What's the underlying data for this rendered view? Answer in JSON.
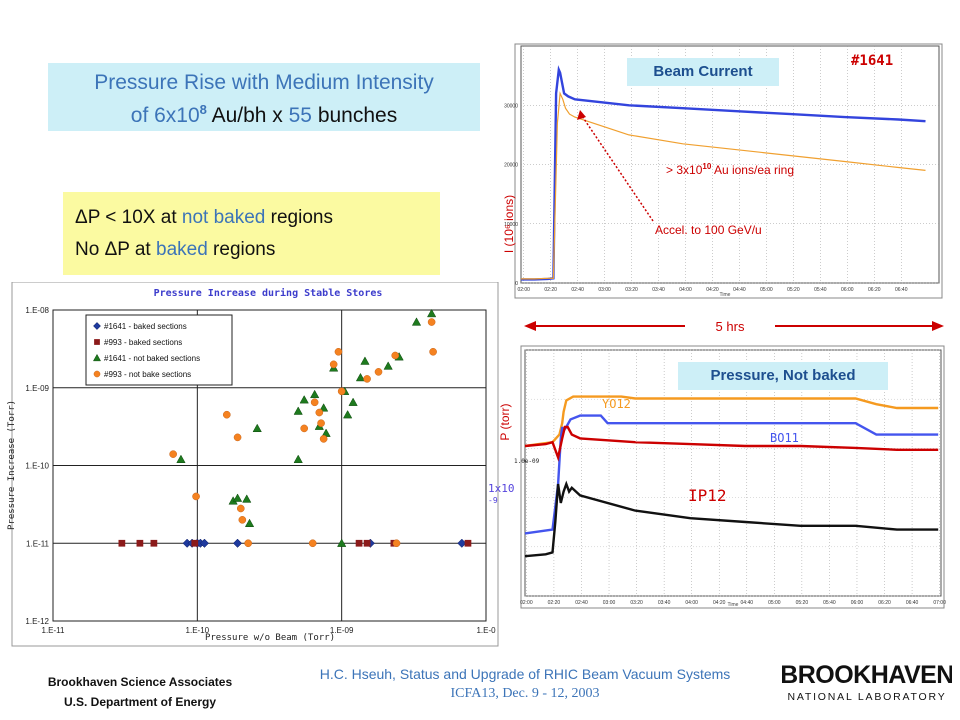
{
  "slide": {
    "title_line1": "Pressure Rise with Medium Intensity",
    "title_line2_pre": "of 6x10",
    "title_line2_sup": "8",
    "title_line2_mid": " Au/bh x ",
    "title_line2_num": "55",
    "title_line2_post": " bunches",
    "note1_pre": "ΔP < 10X at ",
    "note1_hl": "not baked",
    "note1_post": " regions",
    "note2_pre": "No ΔP at ",
    "note2_hl": "baked",
    "note2_post": " regions",
    "footer_org1": "Brookhaven Science Associates",
    "footer_org2": "U.S. Department of Energy",
    "footer_author": "H.C. Hseuh, Status and Upgrade of RHIC Beam Vacuum Systems",
    "footer_event": "ICFA13, Dec. 9 - 12, 2003",
    "logo_line1": "BROOKHAVEN",
    "logo_line2": "NATIONAL LABORATORY",
    "colors": {
      "accent": "#3c74b8",
      "title_bg": "#cdeff7",
      "note_bg": "#fbfaa1",
      "red": "#cc0000"
    }
  },
  "chart_data": [
    {
      "type": "scatter",
      "title": "Pressure Increase during Stable Stores",
      "xlabel": "Pressure w/o Beam (Torr)",
      "ylabel": "Pressure Increase (Torr)",
      "x_scale": "log",
      "y_scale": "log",
      "xlim": [
        1e-11,
        1e-08
      ],
      "ylim": [
        1e-12,
        1e-08
      ],
      "x_ticks": [
        "1.E-11",
        "1.E-10",
        "1.E-09",
        "1.E-0"
      ],
      "y_ticks": [
        "1.E-08",
        "1.E-09",
        "1.E-10",
        "1.E-11",
        "1.E-12"
      ],
      "legend_position": "top-left",
      "series": [
        {
          "name": "#1641 - baked sections",
          "marker": "diamond",
          "color": "#1f3a9e",
          "points": [
            [
              8.5e-11,
              1e-11
            ],
            [
              9.2e-11,
              1e-11
            ],
            [
              1e-10,
              1e-11
            ],
            [
              1.05e-10,
              1e-11
            ],
            [
              1.12e-10,
              1e-11
            ],
            [
              1.9e-10,
              1e-11
            ],
            [
              1.58e-09,
              1e-11
            ],
            [
              6.8e-09,
              1e-11
            ]
          ]
        },
        {
          "name": "#993 - baked sections",
          "marker": "square",
          "color": "#8b1a1a",
          "points": [
            [
              3e-11,
              1e-11
            ],
            [
              4e-11,
              1e-11
            ],
            [
              5e-11,
              1e-11
            ],
            [
              9.6e-11,
              1e-11
            ],
            [
              1.32e-09,
              1e-11
            ],
            [
              1.5e-09,
              1e-11
            ],
            [
              2.3e-09,
              1e-11
            ],
            [
              7.5e-09,
              1e-11
            ]
          ]
        },
        {
          "name": "#1641 - not baked sections",
          "marker": "triangle",
          "color": "#1e7a1e",
          "points": [
            [
              7.7e-11,
              1.2e-10
            ],
            [
              1.77e-10,
              3.5e-11
            ],
            [
              1.9e-10,
              3.8e-11
            ],
            [
              2.2e-10,
              3.7e-11
            ],
            [
              2.3e-10,
              1.8e-11
            ],
            [
              2.6e-10,
              3e-10
            ],
            [
              5e-10,
              1.2e-10
            ],
            [
              5e-10,
              5e-10
            ],
            [
              5.5e-10,
              7e-10
            ],
            [
              6.5e-10,
              8.2e-10
            ],
            [
              7e-10,
              3.2e-10
            ],
            [
              7.5e-10,
              5.5e-10
            ],
            [
              7.8e-10,
              2.6e-10
            ],
            [
              8.8e-10,
              1.8e-09
            ],
            [
              1e-09,
              1e-11
            ],
            [
              1.05e-09,
              9e-10
            ],
            [
              1.1e-09,
              4.5e-10
            ],
            [
              1.2e-09,
              6.5e-10
            ],
            [
              1.35e-09,
              1.35e-09
            ],
            [
              1.45e-09,
              2.2e-09
            ],
            [
              2.1e-09,
              1.9e-09
            ],
            [
              2.5e-09,
              2.5e-09
            ],
            [
              3.3e-09,
              7e-09
            ],
            [
              4.2e-09,
              9e-09
            ]
          ]
        },
        {
          "name": "#993 - not bake sections",
          "marker": "circle",
          "color": "#f58220",
          "points": [
            [
              6.8e-11,
              1.4e-10
            ],
            [
              9.8e-11,
              4e-11
            ],
            [
              1.6e-10,
              4.5e-10
            ],
            [
              1.9e-10,
              2.3e-10
            ],
            [
              2e-10,
              2.8e-11
            ],
            [
              2.05e-10,
              2e-11
            ],
            [
              2.25e-10,
              1e-11
            ],
            [
              5.5e-10,
              3e-10
            ],
            [
              6.3e-10,
              1e-11
            ],
            [
              6.5e-10,
              6.5e-10
            ],
            [
              7e-10,
              4.8e-10
            ],
            [
              7.2e-10,
              3.5e-10
            ],
            [
              7.5e-10,
              2.2e-10
            ],
            [
              8.8e-10,
              2e-09
            ],
            [
              9.5e-10,
              2.9e-09
            ],
            [
              1e-09,
              9e-10
            ],
            [
              1.5e-09,
              1.3e-09
            ],
            [
              1.8e-09,
              1.6e-09
            ],
            [
              2.35e-09,
              2.6e-09
            ],
            [
              2.4e-09,
              1e-11
            ],
            [
              4.2e-09,
              7e-09
            ],
            [
              4.3e-09,
              2.9e-09
            ]
          ]
        }
      ]
    },
    {
      "type": "line",
      "title": "Beam Current",
      "ylabel": "I (10⁶ ions)",
      "xlabel": "Time",
      "x_ticks": [
        "02:00",
        "02:20",
        "02:40",
        "03:00",
        "03:20",
        "03:40",
        "04:00",
        "04:20",
        "04:40",
        "05:00",
        "05:20",
        "05:40",
        "06:00",
        "06:20",
        "06:40"
      ],
      "y_ticks": [
        "30000",
        "20000",
        "10000",
        "0"
      ],
      "ylim": [
        0,
        40000
      ],
      "fill_label": "#1641",
      "annotation_intensity_pre": "> 3x10",
      "annotation_intensity_sup": "10",
      "annotation_intensity_post": " Au ions/ea ring",
      "annotation_accel": "Accel. to 100 GeV/u",
      "span_label": "5 hrs",
      "series": [
        {
          "color": "#3344dd",
          "x": [
            0,
            10,
            20,
            24,
            26,
            28,
            29,
            32,
            35,
            40,
            80,
            120,
            160,
            200,
            240,
            280,
            300
          ],
          "y": [
            600,
            600,
            700,
            800,
            32000,
            36000,
            35500,
            32000,
            31500,
            31000,
            30000,
            29500,
            29000,
            28500,
            28000,
            27600,
            27300
          ]
        },
        {
          "color": "#f0a030",
          "x": [
            0,
            10,
            20,
            24,
            27,
            29,
            31,
            33,
            36,
            40,
            80,
            120,
            160,
            200,
            240,
            280,
            300
          ],
          "y": [
            700,
            700,
            800,
            800,
            27000,
            32000,
            31000,
            29500,
            28500,
            28000,
            25000,
            23500,
            22500,
            21500,
            20500,
            19500,
            19000
          ]
        }
      ]
    },
    {
      "type": "line",
      "title": "Pressure, Not baked",
      "ylabel": "P (torr)",
      "xlabel": "Time",
      "y_tick_label": "1.0e-09",
      "y_ref_pre": "1x10",
      "y_ref_sup": "-9",
      "x_ticks": [
        "02:00",
        "02:20",
        "02:40",
        "03:00",
        "03:20",
        "03:40",
        "04:00",
        "04:20",
        "04:40",
        "05:00",
        "05:20",
        "05:40",
        "06:00",
        "06:20",
        "06:40",
        "07:00"
      ],
      "series": [
        {
          "name": "YO12",
          "color": "#f59a20",
          "x": [
            0,
            20,
            25,
            27,
            28,
            30,
            35,
            40,
            60,
            70,
            80,
            120,
            160,
            200,
            240,
            255,
            270,
            300
          ],
          "y": [
            3.0,
            3.1,
            3.3,
            3.6,
            3.9,
            4.2,
            4.3,
            4.3,
            4.3,
            4.3,
            4.25,
            4.25,
            4.25,
            4.25,
            4.25,
            4.1,
            4.0,
            4.0
          ]
        },
        {
          "name": "BO11",
          "color": "#4455ee",
          "x": [
            0,
            20,
            24,
            26,
            27,
            28,
            30,
            33,
            40,
            55,
            60,
            80,
            120,
            160,
            200,
            240,
            255,
            270,
            300
          ],
          "y": [
            0.7,
            0.8,
            2.0,
            3.2,
            3.5,
            3.4,
            3.5,
            3.7,
            3.8,
            3.8,
            3.6,
            3.6,
            3.6,
            3.6,
            3.6,
            3.6,
            3.3,
            3.3,
            3.3
          ]
        },
        {
          "name": "IP12",
          "color": "#cc0000",
          "x": [
            0,
            15,
            20,
            24,
            27,
            29,
            31,
            34,
            40,
            80,
            120,
            160,
            200,
            240,
            270,
            300
          ],
          "y": [
            3.0,
            3.05,
            3.1,
            2.7,
            3.2,
            3.5,
            3.5,
            3.3,
            3.2,
            3.1,
            3.05,
            3.0,
            3.0,
            2.95,
            2.9,
            2.9
          ]
        },
        {
          "name": "",
          "color": "#111111",
          "x": [
            0,
            15,
            20,
            22,
            24,
            26,
            28,
            30,
            32,
            34,
            40,
            80,
            120,
            160,
            200,
            240,
            270,
            300
          ],
          "y": [
            0.1,
            0.15,
            0.2,
            1.0,
            2.0,
            1.5,
            1.8,
            2.0,
            1.8,
            1.9,
            1.7,
            1.3,
            1.1,
            1.0,
            0.9,
            0.9,
            0.8,
            0.8
          ]
        }
      ]
    }
  ]
}
